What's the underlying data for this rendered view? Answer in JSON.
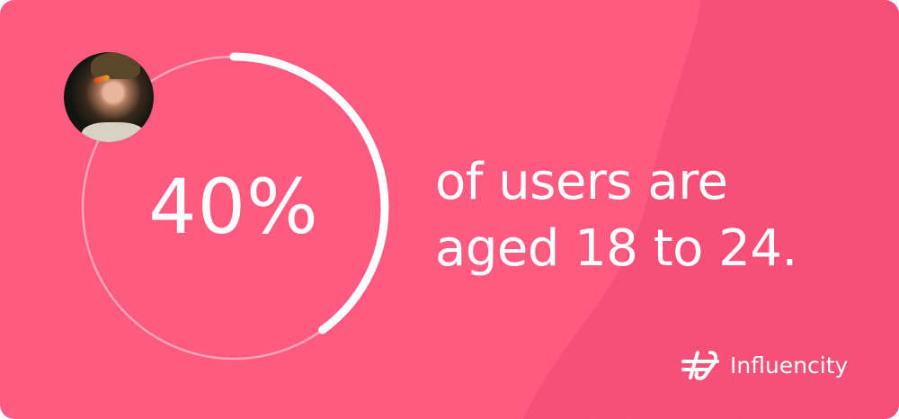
{
  "stat": {
    "value_label": "40%",
    "progress_fraction": 0.4,
    "description_line1": "of users are",
    "description_line2": "aged 18 to 24."
  },
  "avatar": {
    "icon": "person-photo"
  },
  "brand": {
    "name": "Influencity",
    "icon": "hash-logo-icon"
  },
  "colors": {
    "background": "#FF5A80",
    "texture": "#F84A72",
    "foreground": "#FFFFFF"
  }
}
